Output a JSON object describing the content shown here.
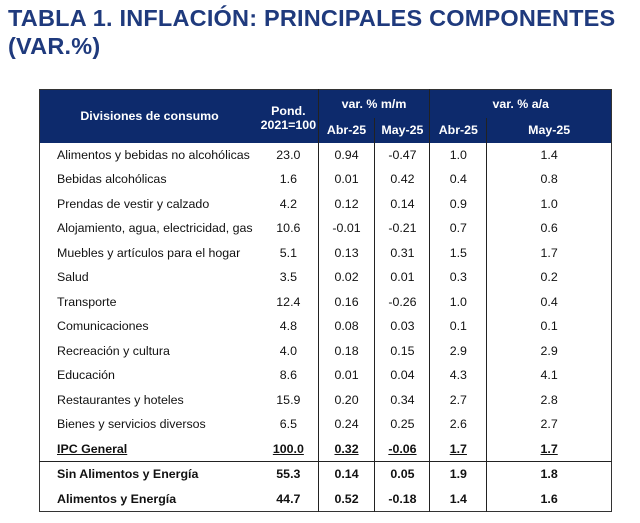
{
  "title": "TABLA 1. INFLACIÓN: PRINCIPALES COMPONENTES (VAR.%)",
  "header": {
    "division": "Divisiones de consumo",
    "pond_line1": "Pond.",
    "pond_line2": "2021=100",
    "mm": "var. % m/m",
    "aa": "var. % a/a",
    "periods": [
      "Abr-25",
      "May-25",
      "Abr-25",
      "May-25"
    ]
  },
  "rows": [
    [
      "Alimentos y bebidas no alcohólicas",
      "23.0",
      "0.94",
      "-0.47",
      "1.0",
      "1.4"
    ],
    [
      "Bebidas alcohólicas",
      "1.6",
      "0.01",
      "0.42",
      "0.4",
      "0.8"
    ],
    [
      "Prendas de vestir y calzado",
      "4.2",
      "0.12",
      "0.14",
      "0.9",
      "1.0"
    ],
    [
      "Alojamiento, agua, electricidad, gas",
      "10.6",
      "-0.01",
      "-0.21",
      "0.7",
      "0.6"
    ],
    [
      "Muebles y artículos para el hogar",
      "5.1",
      "0.13",
      "0.31",
      "1.5",
      "1.7"
    ],
    [
      "Salud",
      "3.5",
      "0.02",
      "0.01",
      "0.3",
      "0.2"
    ],
    [
      "Transporte",
      "12.4",
      "0.16",
      "-0.26",
      "1.0",
      "0.4"
    ],
    [
      "Comunicaciones",
      "4.8",
      "0.08",
      "0.03",
      "0.1",
      "0.1"
    ],
    [
      "Recreación y cultura",
      "4.0",
      "0.18",
      "0.15",
      "2.9",
      "2.9"
    ],
    [
      "Educación",
      "8.6",
      "0.01",
      "0.04",
      "4.3",
      "4.1"
    ],
    [
      "Restaurantes y hoteles",
      "15.9",
      "0.20",
      "0.34",
      "2.7",
      "2.8"
    ],
    [
      "Bienes y servicios diversos",
      "6.5",
      "0.24",
      "0.25",
      "2.6",
      "2.7"
    ]
  ],
  "ipc": [
    "IPC General",
    "100.0",
    "0.32",
    "-0.06",
    "1.7",
    "1.7"
  ],
  "summary": [
    [
      "Sin Alimentos y Energía",
      "55.3",
      "0.14",
      "0.05",
      "1.9",
      "1.8"
    ],
    [
      "Alimentos y Energía",
      "44.7",
      "0.52",
      "-0.18",
      "1.4",
      "1.6"
    ]
  ]
}
